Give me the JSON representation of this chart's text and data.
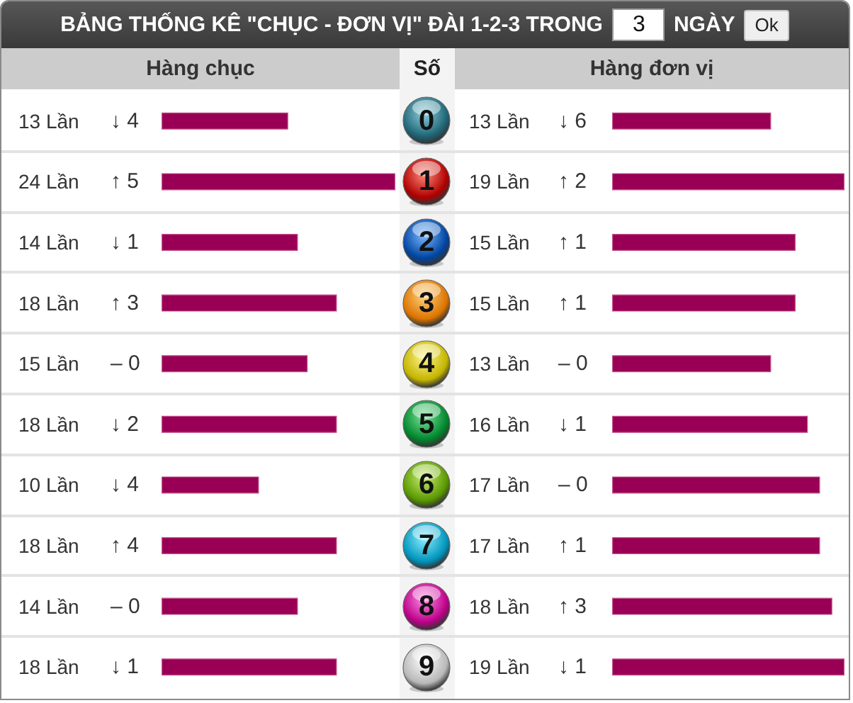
{
  "chart_data": [
    {
      "type": "other",
      "title": "BẢNG THỐNG KÊ \"CHỤC - ĐƠN VỊ\" ĐÀI 1-2-3 TRONG",
      "annotations": [
        "3",
        "NGÀY",
        "Ok"
      ]
    },
    {
      "type": "bar",
      "orientation": "horizontal",
      "title": "Hàng chục",
      "ylabel": "Số",
      "categories": [
        "0",
        "1",
        "2",
        "3",
        "4",
        "5",
        "6",
        "7",
        "8",
        "9"
      ],
      "values": [
        13,
        24,
        14,
        18,
        15,
        18,
        10,
        18,
        14,
        18
      ],
      "value_labels": [
        "13 Lần",
        "24 Lần",
        "14 Lần",
        "18 Lần",
        "15 Lần",
        "18 Lần",
        "10 Lần",
        "18 Lần",
        "14 Lần",
        "18 Lần"
      ],
      "color": "#990055",
      "xlim": [
        0,
        24
      ],
      "tick_labels": "y",
      "annotations": [
        "↓ 4",
        "↑ 5",
        "↓ 1",
        "↑ 3",
        "– 0",
        "↓ 2",
        "↓ 4",
        "↑ 4",
        "– 0",
        "↓ 1"
      ]
    },
    {
      "type": "bar",
      "orientation": "horizontal",
      "title": "Hàng đơn vị",
      "categories": [
        "0",
        "1",
        "2",
        "3",
        "4",
        "5",
        "6",
        "7",
        "8",
        "9"
      ],
      "values": [
        13,
        19,
        15,
        15,
        13,
        16,
        17,
        17,
        18,
        19
      ],
      "value_labels": [
        "13 Lần",
        "19 Lần",
        "15 Lần",
        "15 Lần",
        "13 Lần",
        "16 Lần",
        "17 Lần",
        "17 Lần",
        "18 Lần",
        "19 Lần"
      ],
      "color": "#990055",
      "xlim": [
        0,
        19
      ],
      "tick_labels": false,
      "annotations": [
        "↓ 6",
        "↑ 2",
        "↑ 1",
        "↑ 1",
        "– 0",
        "↓ 1",
        "– 0",
        "↑ 1",
        "↑ 3",
        "↓ 1"
      ]
    }
  ]
}
